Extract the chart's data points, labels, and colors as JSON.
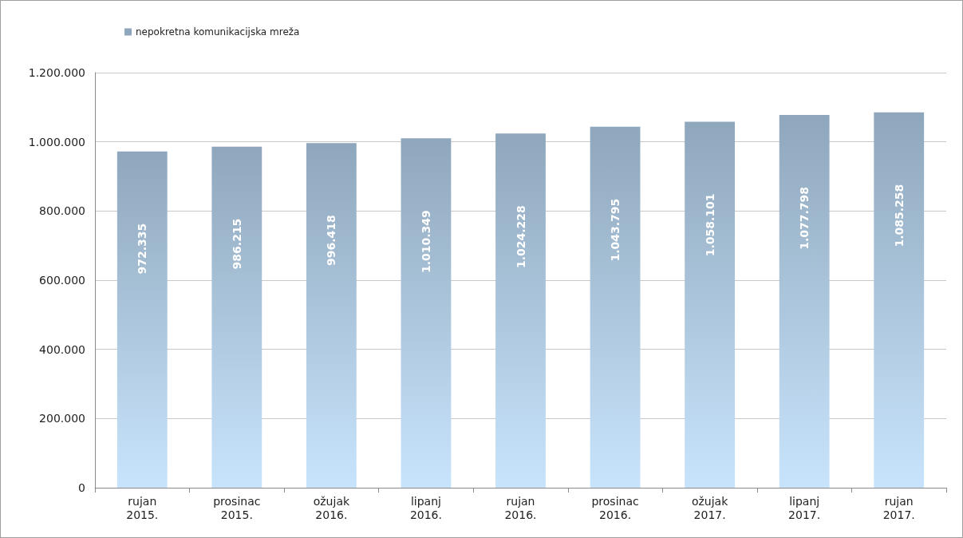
{
  "chart_data": {
    "type": "bar",
    "categories": [
      "rujan 2015.",
      "prosinac 2015.",
      "ožujak 2016.",
      "lipanj 2016.",
      "rujan 2016.",
      "prosinac 2016.",
      "ožujak 2017.",
      "lipanj 2017.",
      "rujan 2017."
    ],
    "series": [
      {
        "name": "nepokretna komunikacijska mreža",
        "color": "#8fa7bc",
        "values": [
          972335,
          986215,
          996418,
          1010349,
          1024228,
          1043795,
          1058101,
          1077798,
          1085258
        ],
        "value_labels": [
          "972.335",
          "986.215",
          "996.418",
          "1.010.349",
          "1.024.228",
          "1.043.795",
          "1.058.101",
          "1.077.798",
          "1.085.258"
        ]
      }
    ],
    "ylim": [
      0,
      1200000
    ],
    "yticks": [
      0,
      {
        "value": 200000,
        "label": "200.000"
      },
      {
        "value": 400000,
        "label": "400.000"
      },
      {
        "value": 600000,
        "label": "600.000"
      },
      {
        "value": 800000,
        "label": "800.000"
      },
      {
        "value": 1000000,
        "label": "1.000.000"
      },
      {
        "value": 1200000,
        "label": "1.200.000"
      }
    ],
    "grid": "y",
    "legend": "top left"
  }
}
